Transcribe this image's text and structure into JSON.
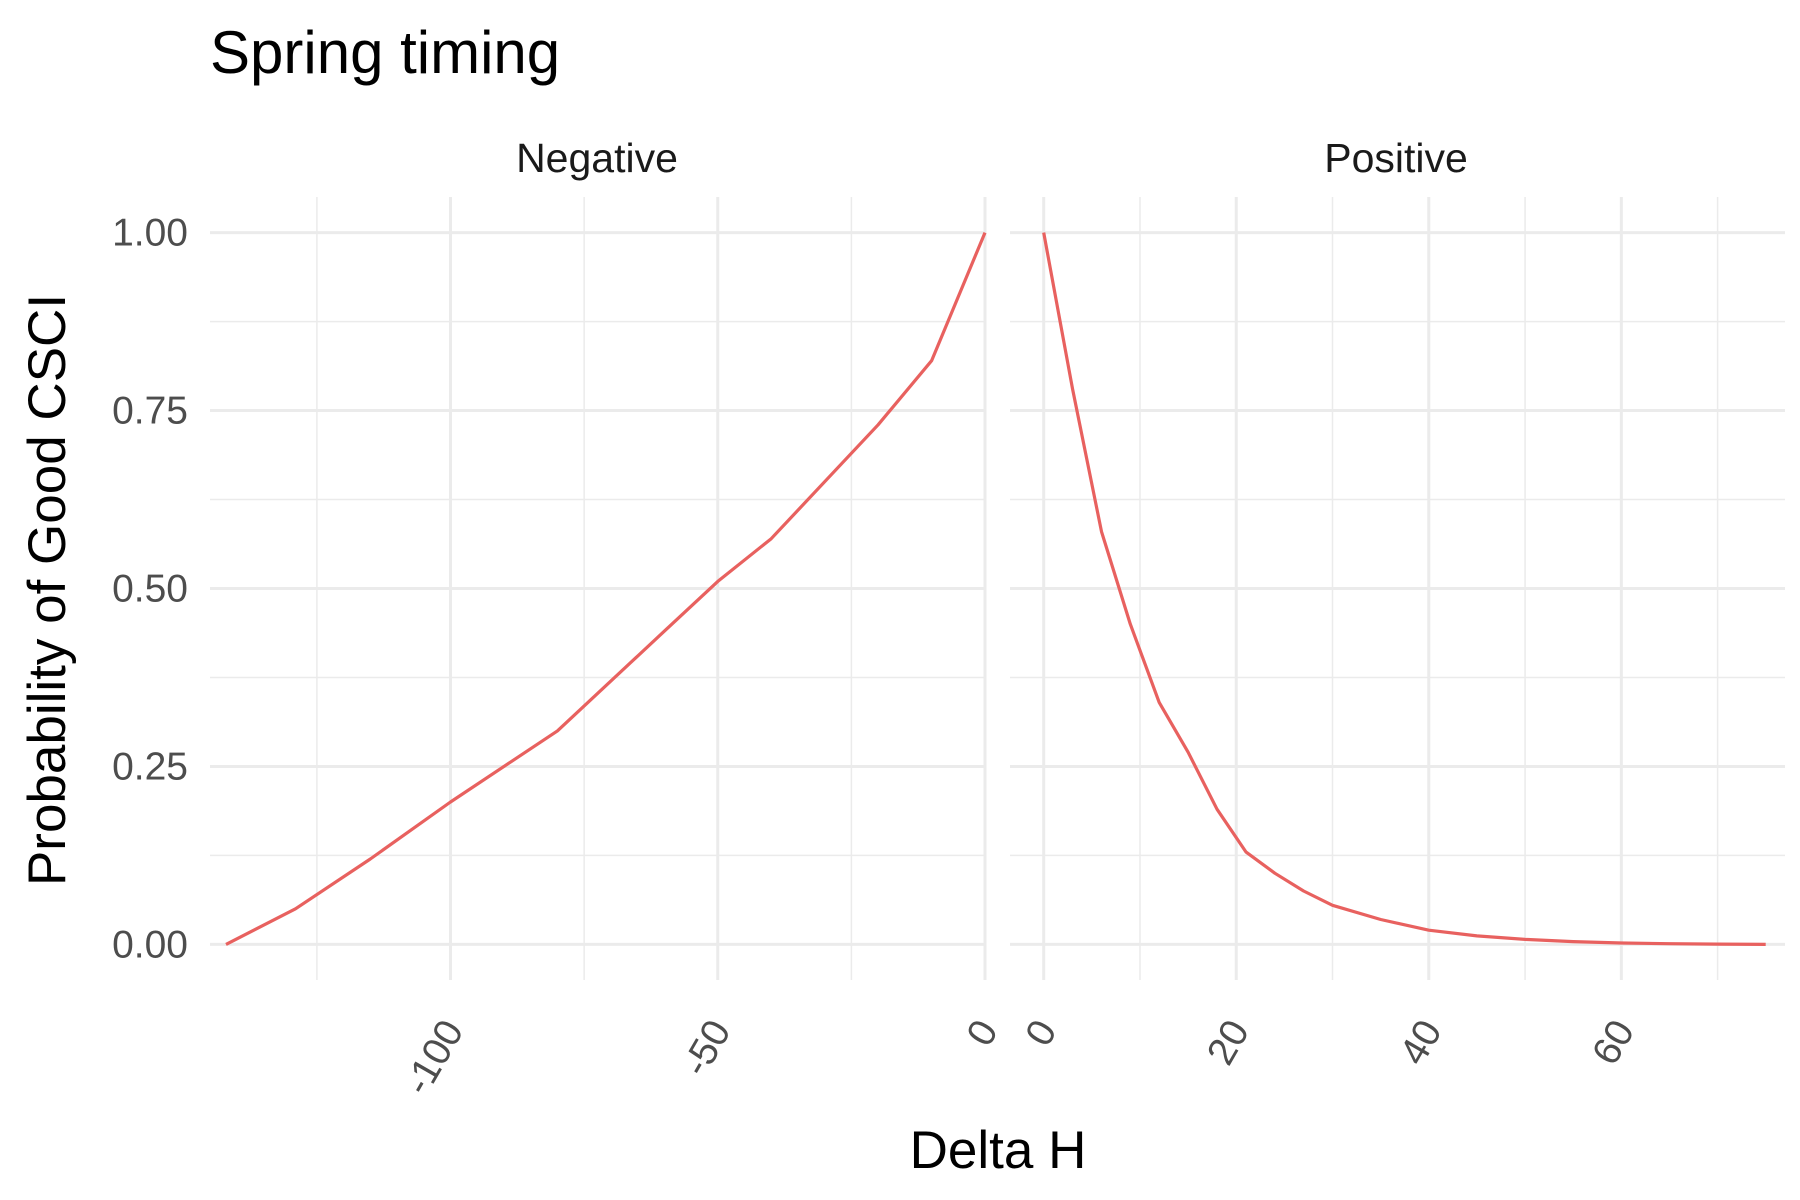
{
  "chart_data": {
    "type": "line",
    "title": "Spring timing",
    "xlabel": "Delta H",
    "ylabel": "Probability of Good CSCI",
    "ylim": [
      -0.05,
      1.05
    ],
    "y_ticks": [
      "0.00",
      "0.25",
      "0.50",
      "0.75",
      "1.00"
    ],
    "grid": true,
    "line_color": "#E8615F",
    "grid_color": "#EBEBEB",
    "panels": [
      {
        "name": "Negative",
        "xlim": [
          -145,
          0
        ],
        "x_ticks": [
          "-100",
          "-50",
          "0"
        ],
        "x": [
          -142,
          -129,
          -115,
          -100,
          -80,
          -60,
          -50,
          -40,
          -30,
          -20,
          -10,
          0
        ],
        "y": [
          0.0,
          0.05,
          0.12,
          0.2,
          0.3,
          0.44,
          0.51,
          0.57,
          0.65,
          0.73,
          0.82,
          1.0
        ]
      },
      {
        "name": "Positive",
        "xlim": [
          -3.5,
          77
        ],
        "x_ticks": [
          "0",
          "20",
          "40",
          "60"
        ],
        "x": [
          0,
          3,
          6,
          9,
          12,
          15,
          18,
          21,
          24,
          27,
          30,
          35,
          40,
          45,
          50,
          55,
          60,
          65,
          70,
          75
        ],
        "y": [
          1.0,
          0.78,
          0.58,
          0.45,
          0.34,
          0.27,
          0.19,
          0.13,
          0.1,
          0.075,
          0.055,
          0.035,
          0.02,
          0.012,
          0.007,
          0.004,
          0.002,
          0.001,
          0.0005,
          0.0
        ]
      }
    ]
  }
}
